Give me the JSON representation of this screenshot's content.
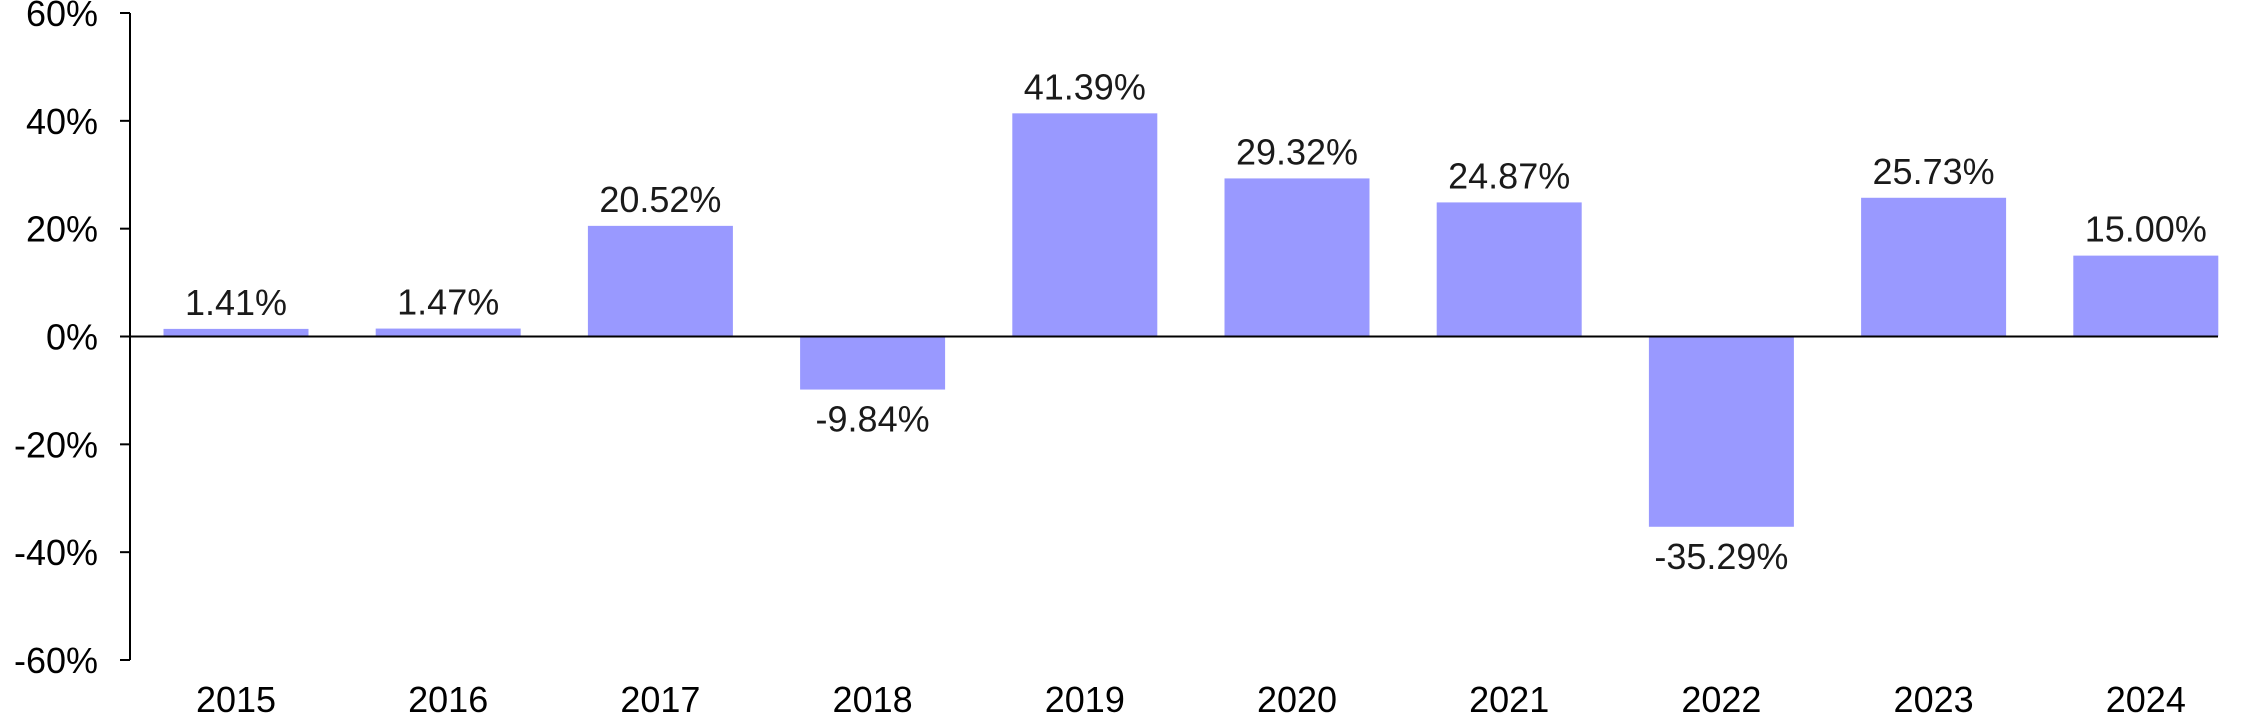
{
  "chart_data": {
    "type": "bar",
    "categories": [
      "2015",
      "2016",
      "2017",
      "2018",
      "2019",
      "2020",
      "2021",
      "2022",
      "2023",
      "2024"
    ],
    "values": [
      1.41,
      1.47,
      20.52,
      -9.84,
      41.39,
      29.32,
      24.87,
      -35.29,
      25.73,
      15.0
    ],
    "data_labels": [
      "1.41%",
      "1.47%",
      "20.52%",
      "-9.84%",
      "41.39%",
      "29.32%",
      "24.87%",
      "-35.29%",
      "25.73%",
      "15.00%"
    ],
    "y_ticks": [
      60,
      40,
      20,
      0,
      -20,
      -40,
      -60
    ],
    "y_tick_labels": [
      "60%",
      "40%",
      "20%",
      "0%",
      "-20%",
      "-40%",
      "-60%"
    ],
    "ylim": [
      -60,
      60
    ],
    "grid": false,
    "legend": "none",
    "bar_color": "#9999ff",
    "title": "",
    "xlabel": "",
    "ylabel": ""
  }
}
